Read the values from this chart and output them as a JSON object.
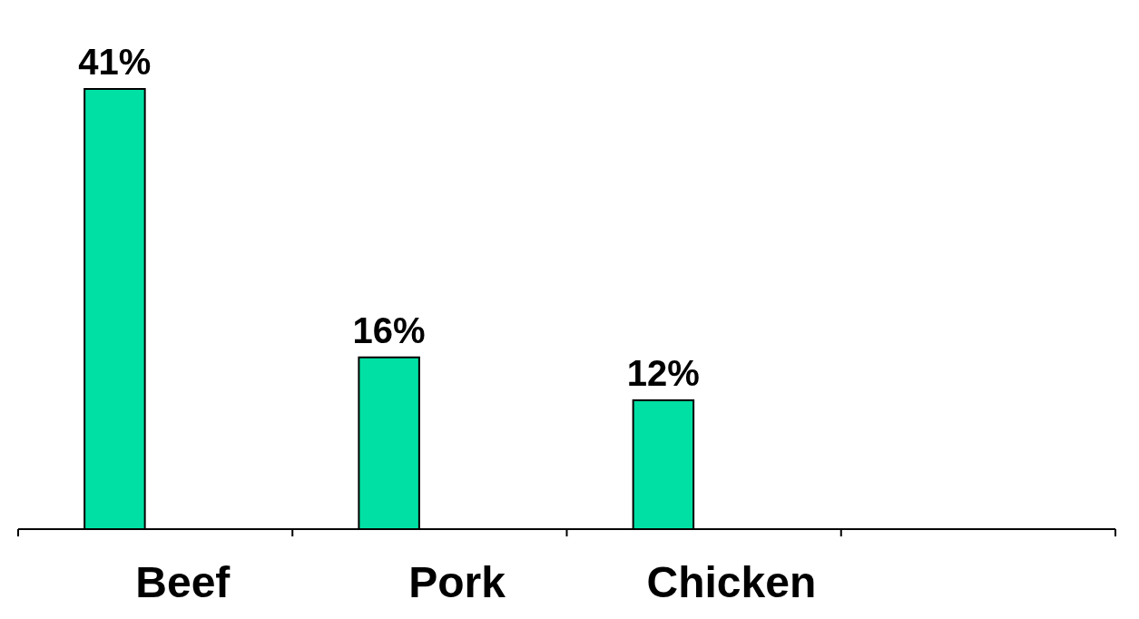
{
  "chart_data": {
    "type": "bar",
    "categories": [
      "Beef",
      "Pork",
      "Chicken",
      null
    ],
    "values": [
      41,
      16,
      12,
      null
    ],
    "color": "#00e0a4",
    "value_labels": [
      "41%",
      "16%",
      "12%",
      null
    ]
  }
}
